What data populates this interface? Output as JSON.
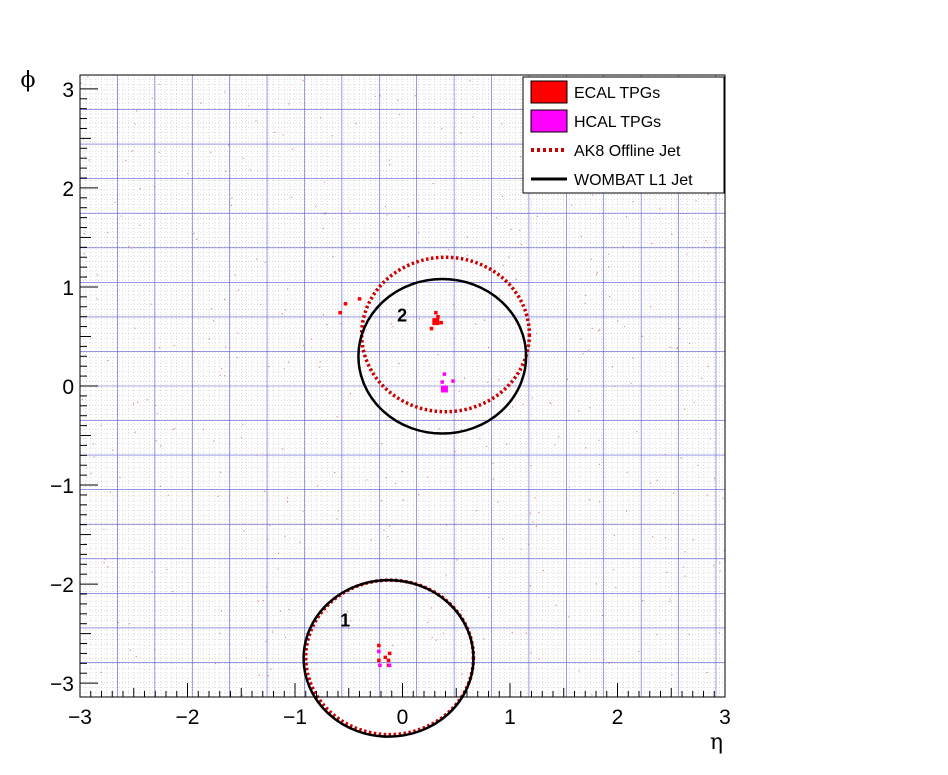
{
  "chart_data": {
    "type": "scatter",
    "title": "",
    "xlabel": "η",
    "ylabel": "ϕ",
    "xlim": [
      -3,
      3
    ],
    "ylim": [
      -3.14,
      3.14
    ],
    "xticks": [
      -3,
      -2,
      -1,
      0,
      1,
      2,
      3
    ],
    "xtick_labels": [
      "−3",
      "−2",
      "−1",
      "0",
      "1",
      "2",
      "3"
    ],
    "yticks": [
      -3,
      -2,
      -1,
      0,
      1,
      2,
      3
    ],
    "ytick_labels": [
      "−3",
      "−2",
      "−1",
      "0",
      "1",
      "2",
      "3"
    ],
    "grid": true,
    "legend_position": "top-right",
    "legend": [
      {
        "key": "ecal",
        "label": "ECAL TPGs",
        "kind": "box",
        "color": "#ff0000"
      },
      {
        "key": "hcal",
        "label": "HCAL TPGs",
        "kind": "box",
        "color": "#ff00ff"
      },
      {
        "key": "ak8",
        "label": "AK8 Offline Jet",
        "kind": "dotted",
        "color": "#cc0000"
      },
      {
        "key": "wombat",
        "label": "WOMBAT L1 Jet",
        "kind": "solid",
        "color": "#000000"
      }
    ],
    "series": [
      {
        "key": "ecal",
        "points": [
          {
            "x": 0.31,
            "y": 0.65
          },
          {
            "x": 0.33,
            "y": 0.7
          },
          {
            "x": 0.31,
            "y": 0.74
          },
          {
            "x": 0.27,
            "y": 0.58
          },
          {
            "x": 0.36,
            "y": 0.64
          },
          {
            "x": -0.13,
            "y": -2.77
          },
          {
            "x": -0.16,
            "y": -2.74
          },
          {
            "x": -0.22,
            "y": -2.77
          },
          {
            "x": -0.12,
            "y": -2.7
          },
          {
            "x": -0.22,
            "y": -2.62
          },
          {
            "x": -0.13,
            "y": -2.82
          },
          {
            "x": -0.53,
            "y": 0.83
          },
          {
            "x": -0.58,
            "y": 0.74
          },
          {
            "x": -0.4,
            "y": 0.88
          }
        ]
      },
      {
        "key": "hcal",
        "points": [
          {
            "x": 0.39,
            "y": -0.03
          },
          {
            "x": 0.37,
            "y": 0.04
          },
          {
            "x": 0.47,
            "y": 0.05
          },
          {
            "x": 0.39,
            "y": 0.12
          },
          {
            "x": -0.21,
            "y": -2.82
          },
          {
            "x": -0.12,
            "y": -2.82
          },
          {
            "x": -0.22,
            "y": -2.68
          }
        ]
      }
    ],
    "jets": [
      {
        "key": "ak8",
        "label": "1",
        "eta": -0.12,
        "phi": -2.74,
        "r": 0.78,
        "label_x": -0.58,
        "label_y": -2.43
      },
      {
        "key": "wombat",
        "label": "",
        "eta": -0.13,
        "phi": -2.75,
        "r": 0.79,
        "label_x": 0,
        "label_y": 0
      },
      {
        "key": "ak8",
        "label": "2",
        "eta": 0.4,
        "phi": 0.52,
        "r": 0.78,
        "label_x": -0.05,
        "label_y": 0.65
      },
      {
        "key": "wombat",
        "label": "",
        "eta": 0.37,
        "phi": 0.3,
        "r": 0.78,
        "label_x": 0,
        "label_y": 0
      }
    ]
  }
}
